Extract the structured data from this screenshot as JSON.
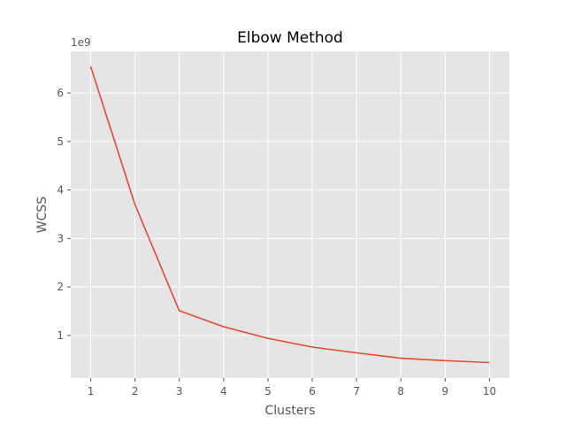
{
  "chart_data": {
    "type": "line",
    "title": "Elbow Method",
    "xlabel": "Clusters",
    "ylabel": "WCSS",
    "y_offset_label": "1e9",
    "x": [
      1,
      2,
      3,
      4,
      5,
      6,
      7,
      8,
      9,
      10
    ],
    "xticks": [
      "1",
      "2",
      "3",
      "4",
      "5",
      "6",
      "7",
      "8",
      "9",
      "10"
    ],
    "series": [
      {
        "values": [
          6.55,
          3.7,
          1.51,
          1.18,
          0.94,
          0.76,
          0.64,
          0.53,
          0.48,
          0.44
        ],
        "color": "#E24A33"
      }
    ],
    "yticks": [
      "1",
      "2",
      "3",
      "4",
      "5",
      "6"
    ],
    "ytick_values": [
      1,
      2,
      3,
      4,
      5,
      6
    ],
    "xlim": [
      0.55,
      10.45
    ],
    "ylim": [
      0.12,
      6.86
    ],
    "grid": true,
    "background": "#E5E5E5",
    "grid_color": "#FFFFFF"
  }
}
